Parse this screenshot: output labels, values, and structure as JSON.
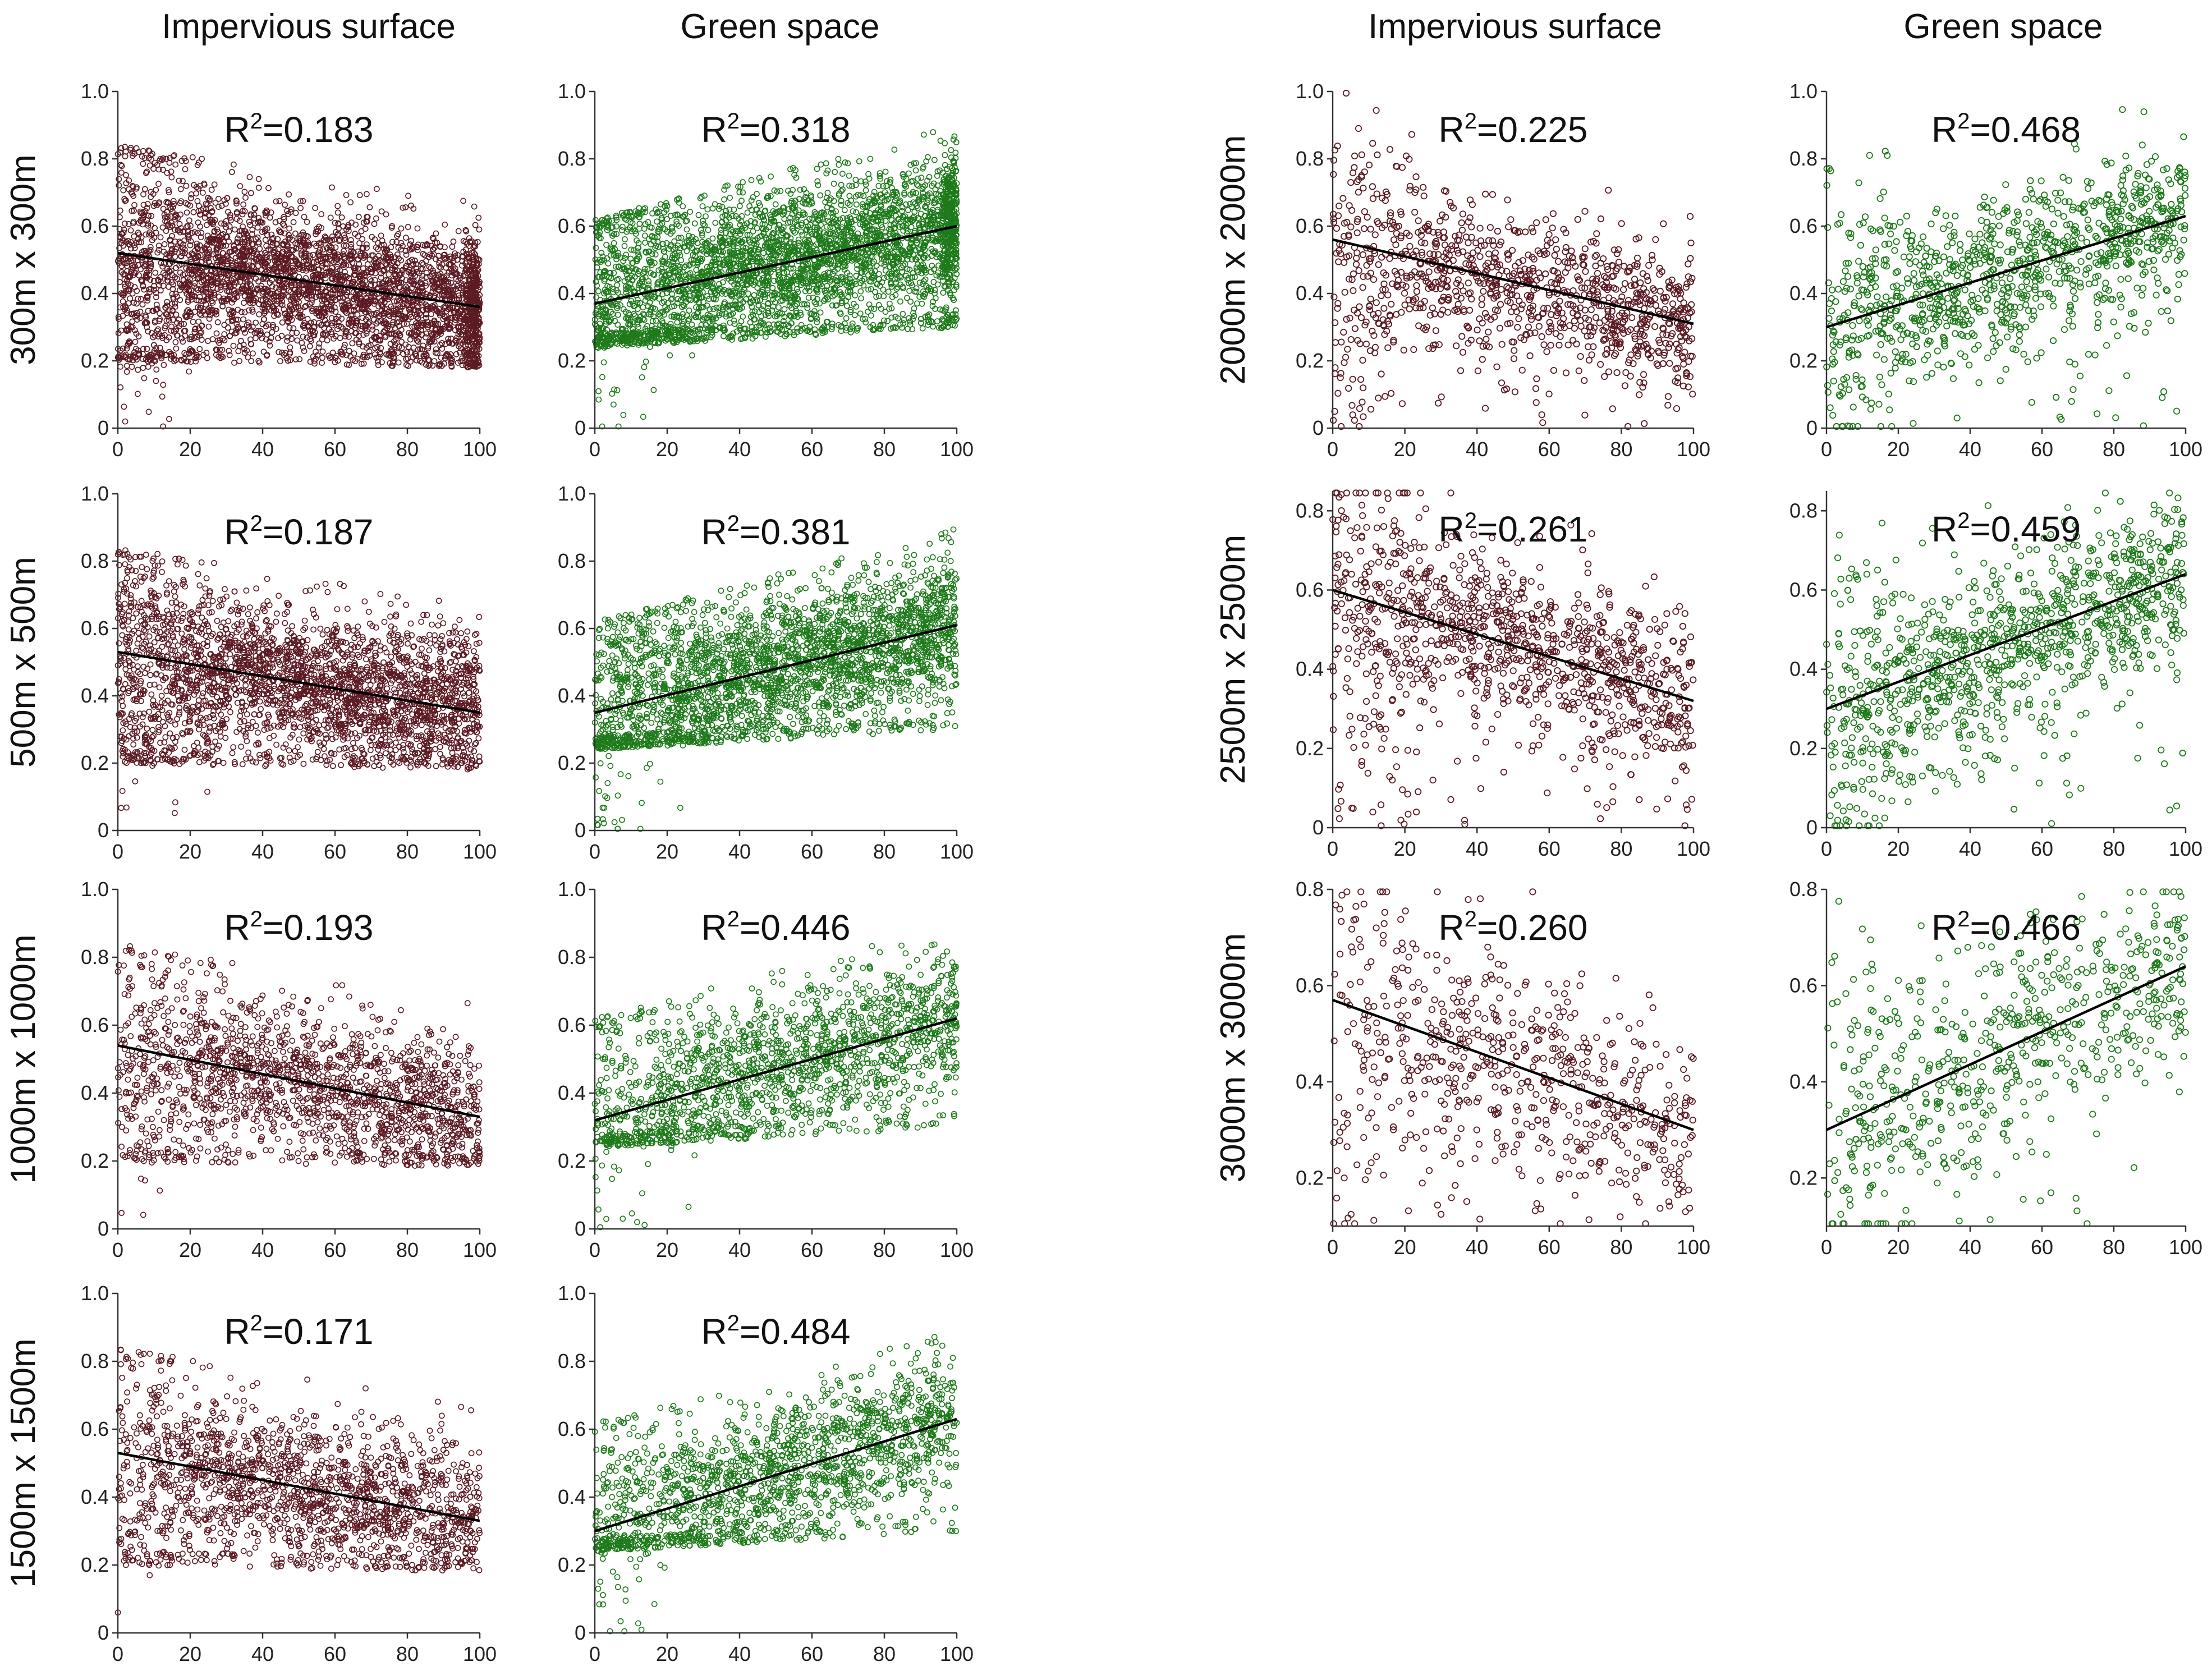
{
  "column_titles": [
    "Impervious surface",
    "Green space",
    "Impervious surface",
    "Green space"
  ],
  "colors": {
    "impervious": "#5c1a22",
    "green": "#1e7a1a",
    "fit_line": "#000000"
  },
  "chart_data": [
    {
      "type": "scatter",
      "variable": "Impervious surface",
      "scale": "300m x 300m",
      "r2": "R²=0.183",
      "xlim": [
        0,
        100
      ],
      "ylim": [
        0,
        1.0
      ],
      "x_ticks": [
        0,
        20,
        40,
        60,
        80,
        100
      ],
      "y_ticks": [
        0,
        0.2,
        0.4,
        0.6,
        0.8,
        1.0
      ],
      "fit": {
        "x0": 0,
        "y0": 0.52,
        "x1": 100,
        "y1": 0.36
      },
      "point_density": "very dense"
    },
    {
      "type": "scatter",
      "variable": "Green space",
      "scale": "300m x 300m",
      "r2": "R²=0.318",
      "xlim": [
        0,
        100
      ],
      "ylim": [
        0,
        1.0
      ],
      "x_ticks": [
        0,
        20,
        40,
        60,
        80,
        100
      ],
      "y_ticks": [
        0,
        0.2,
        0.4,
        0.6,
        0.8,
        1.0
      ],
      "fit": {
        "x0": 0,
        "y0": 0.37,
        "x1": 100,
        "y1": 0.6
      },
      "point_density": "very dense"
    },
    {
      "type": "scatter",
      "variable": "Impervious surface",
      "scale": "500m x 500m",
      "r2": "R²=0.187",
      "xlim": [
        0,
        100
      ],
      "ylim": [
        0,
        1.0
      ],
      "x_ticks": [
        0,
        20,
        40,
        60,
        80,
        100
      ],
      "y_ticks": [
        0,
        0.2,
        0.4,
        0.6,
        0.8,
        1.0
      ],
      "fit": {
        "x0": 0,
        "y0": 0.53,
        "x1": 100,
        "y1": 0.35
      },
      "point_density": "dense"
    },
    {
      "type": "scatter",
      "variable": "Green space",
      "scale": "500m x 500m",
      "r2": "R²=0.381",
      "xlim": [
        0,
        100
      ],
      "ylim": [
        0,
        1.0
      ],
      "x_ticks": [
        0,
        20,
        40,
        60,
        80,
        100
      ],
      "y_ticks": [
        0,
        0.2,
        0.4,
        0.6,
        0.8,
        1.0
      ],
      "fit": {
        "x0": 0,
        "y0": 0.35,
        "x1": 100,
        "y1": 0.61
      },
      "point_density": "dense"
    },
    {
      "type": "scatter",
      "variable": "Impervious surface",
      "scale": "1000m x 1000m",
      "r2": "R²=0.193",
      "xlim": [
        0,
        100
      ],
      "ylim": [
        0,
        1.0
      ],
      "x_ticks": [
        0,
        20,
        40,
        60,
        80,
        100
      ],
      "y_ticks": [
        0,
        0.2,
        0.4,
        0.6,
        0.8,
        1.0
      ],
      "fit": {
        "x0": 0,
        "y0": 0.54,
        "x1": 100,
        "y1": 0.33
      },
      "point_density": "medium"
    },
    {
      "type": "scatter",
      "variable": "Green space",
      "scale": "1000m x 1000m",
      "r2": "R²=0.446",
      "xlim": [
        0,
        100
      ],
      "ylim": [
        0,
        1.0
      ],
      "x_ticks": [
        0,
        20,
        40,
        60,
        80,
        100
      ],
      "y_ticks": [
        0,
        0.2,
        0.4,
        0.6,
        0.8,
        1.0
      ],
      "fit": {
        "x0": 0,
        "y0": 0.32,
        "x1": 100,
        "y1": 0.62
      },
      "point_density": "medium"
    },
    {
      "type": "scatter",
      "variable": "Impervious surface",
      "scale": "1500m x 1500m",
      "r2": "R²=0.171",
      "xlim": [
        0,
        100
      ],
      "ylim": [
        0,
        1.0
      ],
      "x_ticks": [
        0,
        20,
        40,
        60,
        80,
        100
      ],
      "y_ticks": [
        0,
        0.2,
        0.4,
        0.6,
        0.8,
        1.0
      ],
      "fit": {
        "x0": 0,
        "y0": 0.53,
        "x1": 100,
        "y1": 0.33
      },
      "point_density": "medium"
    },
    {
      "type": "scatter",
      "variable": "Green space",
      "scale": "1500m x 1500m",
      "r2": "R²=0.484",
      "xlim": [
        0,
        100
      ],
      "ylim": [
        0,
        1.0
      ],
      "x_ticks": [
        0,
        20,
        40,
        60,
        80,
        100
      ],
      "y_ticks": [
        0,
        0.2,
        0.4,
        0.6,
        0.8,
        1.0
      ],
      "fit": {
        "x0": 0,
        "y0": 0.3,
        "x1": 100,
        "y1": 0.63
      },
      "point_density": "medium"
    },
    {
      "type": "scatter",
      "variable": "Impervious surface",
      "scale": "2000m x 2000m",
      "r2": "R²=0.225",
      "xlim": [
        0,
        100
      ],
      "ylim": [
        0,
        1.0
      ],
      "x_ticks": [
        0,
        20,
        40,
        60,
        80,
        100
      ],
      "y_ticks": [
        0,
        0.2,
        0.4,
        0.6,
        0.8,
        1.0
      ],
      "fit": {
        "x0": 0,
        "y0": 0.56,
        "x1": 100,
        "y1": 0.31
      },
      "point_density": "sparse"
    },
    {
      "type": "scatter",
      "variable": "Green space",
      "scale": "2000m x 2000m",
      "r2": "R²=0.468",
      "xlim": [
        0,
        100
      ],
      "ylim": [
        0,
        1.0
      ],
      "x_ticks": [
        0,
        20,
        40,
        60,
        80,
        100
      ],
      "y_ticks": [
        0,
        0.2,
        0.4,
        0.6,
        0.8,
        1.0
      ],
      "fit": {
        "x0": 0,
        "y0": 0.3,
        "x1": 100,
        "y1": 0.63
      },
      "point_density": "sparse"
    },
    {
      "type": "scatter",
      "variable": "Impervious surface",
      "scale": "2500m x 2500m",
      "r2": "R²=0.261",
      "xlim": [
        0,
        100
      ],
      "ylim": [
        0,
        0.85
      ],
      "x_ticks": [
        0,
        20,
        40,
        60,
        80,
        100
      ],
      "y_ticks": [
        0,
        0.2,
        0.4,
        0.6,
        0.8
      ],
      "fit": {
        "x0": 0,
        "y0": 0.6,
        "x1": 100,
        "y1": 0.32
      },
      "point_density": "sparse"
    },
    {
      "type": "scatter",
      "variable": "Green space",
      "scale": "2500m x 2500m",
      "r2": "R²=0.459",
      "xlim": [
        0,
        100
      ],
      "ylim": [
        0,
        0.85
      ],
      "x_ticks": [
        0,
        20,
        40,
        60,
        80,
        100
      ],
      "y_ticks": [
        0,
        0.2,
        0.4,
        0.6,
        0.8
      ],
      "fit": {
        "x0": 0,
        "y0": 0.3,
        "x1": 100,
        "y1": 0.64
      },
      "point_density": "sparse"
    },
    {
      "type": "scatter",
      "variable": "Impervious surface",
      "scale": "3000m x 3000m",
      "r2": "R²=0.260",
      "xlim": [
        0,
        100
      ],
      "ylim": [
        0.1,
        0.8
      ],
      "x_ticks": [
        0,
        20,
        40,
        60,
        80,
        100
      ],
      "y_ticks": [
        0.2,
        0.4,
        0.6,
        0.8
      ],
      "fit": {
        "x0": 0,
        "y0": 0.57,
        "x1": 100,
        "y1": 0.3
      },
      "point_density": "very sparse"
    },
    {
      "type": "scatter",
      "variable": "Green space",
      "scale": "3000m x 3000m",
      "r2": "R²=0.466",
      "xlim": [
        0,
        100
      ],
      "ylim": [
        0.1,
        0.8
      ],
      "x_ticks": [
        0,
        20,
        40,
        60,
        80,
        100
      ],
      "y_ticks": [
        0.2,
        0.4,
        0.6,
        0.8
      ],
      "fit": {
        "x0": 0,
        "y0": 0.3,
        "x1": 100,
        "y1": 0.64
      },
      "point_density": "very sparse"
    }
  ]
}
